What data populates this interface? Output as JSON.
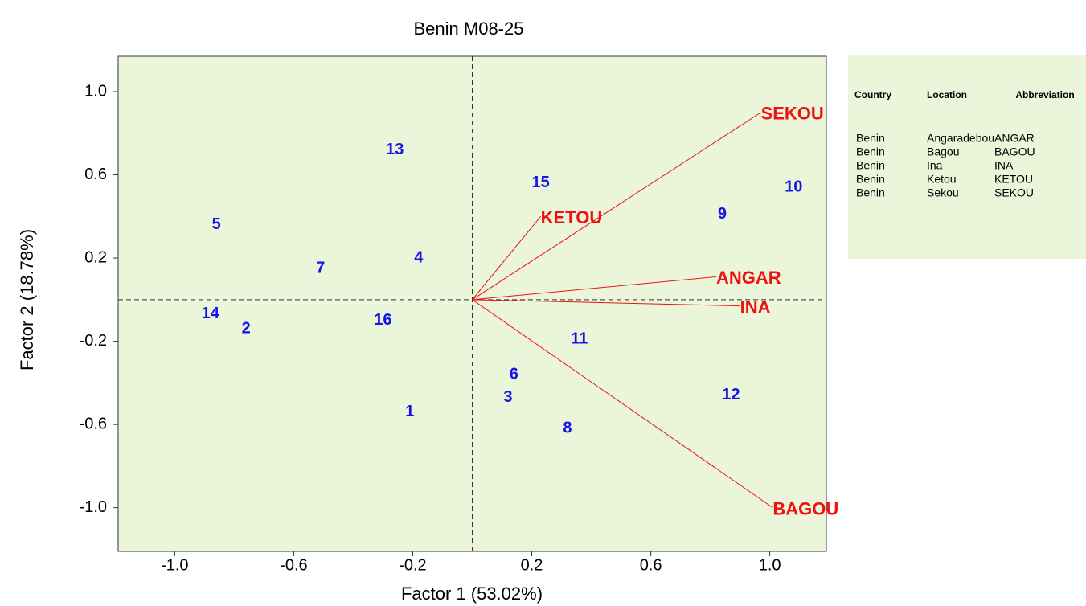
{
  "chart_data": {
    "type": "scatter",
    "title": "Benin M08-25",
    "x_label": "Factor 1 (53.02%)",
    "y_label": "Factor 2 (18.78%)",
    "xlim": [
      -1.19,
      1.19
    ],
    "ylim": [
      -1.21,
      1.17
    ],
    "xticks": [
      {
        "value": -1.0,
        "label": "-1.0"
      },
      -0.6,
      -0.2,
      0.2,
      0.6,
      {
        "value": 1.0,
        "label": "1.0"
      }
    ],
    "yticks": [
      {
        "value": -1.0,
        "label": "-1.0"
      },
      -0.6,
      -0.2,
      0.2,
      0.6,
      {
        "value": 1.0,
        "label": "1.0"
      }
    ],
    "points": {
      "color": "#1414e6",
      "labels": [
        "5",
        "7",
        "4",
        "13",
        "15",
        "14",
        "2",
        "16",
        "1",
        "11",
        "6",
        "3",
        "8",
        "12",
        "9",
        "10"
      ],
      "x": [
        -0.86,
        -0.51,
        -0.18,
        -0.26,
        0.23,
        -0.88,
        -0.76,
        -0.3,
        -0.21,
        0.36,
        0.14,
        0.12,
        0.32,
        0.87,
        0.84,
        1.08
      ],
      "y": [
        0.36,
        0.15,
        0.2,
        0.72,
        0.56,
        -0.07,
        -0.14,
        -0.1,
        -0.54,
        -0.19,
        -0.36,
        -0.47,
        -0.62,
        -0.46,
        0.41,
        0.54
      ]
    },
    "vectors": {
      "color": "#ee1111",
      "names": [
        "SEKOU",
        "KETOU",
        "ANGAR",
        "INA",
        "BAGOU"
      ],
      "x": [
        0.97,
        0.23,
        0.82,
        0.9,
        1.01
      ],
      "y": [
        0.9,
        0.4,
        0.11,
        -0.03,
        -1.0
      ]
    },
    "table": {
      "columns": [
        "Country",
        "Location",
        "Abbreviation"
      ],
      "rows": [
        [
          "Benin",
          "Angaradebou",
          "ANGAR"
        ],
        [
          "Benin",
          "Bagou",
          "BAGOU"
        ],
        [
          "Benin",
          "Ina",
          "INA"
        ],
        [
          "Benin",
          "Ketou",
          "KETOU"
        ],
        [
          "Benin",
          "Sekou",
          "SEKOU"
        ]
      ]
    }
  }
}
